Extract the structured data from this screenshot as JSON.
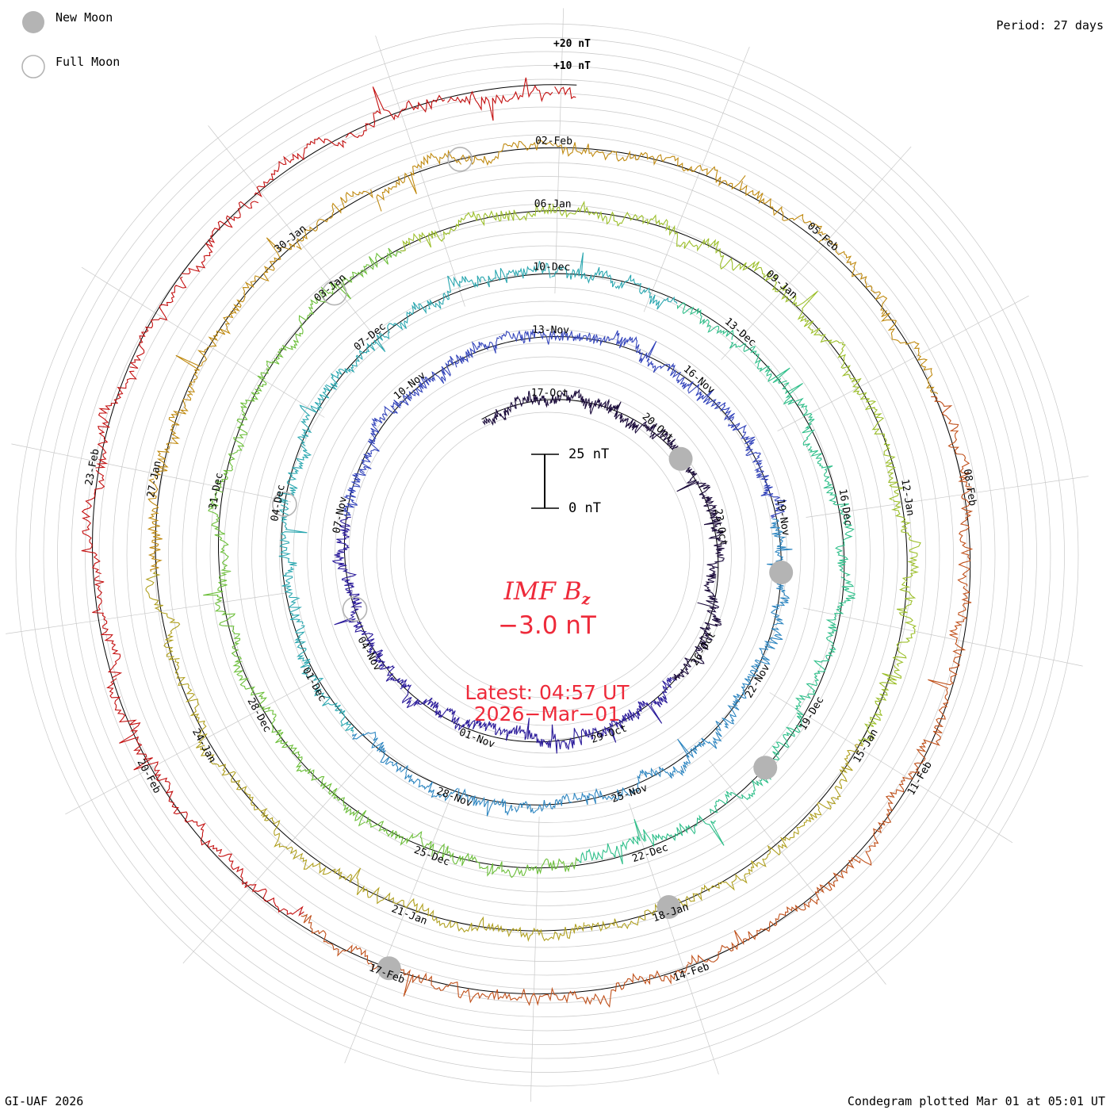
{
  "legend": {
    "new_moon_label": "New Moon",
    "full_moon_label": "Full Moon",
    "new_moon_color": "#b4b4b4",
    "full_moon_color": "#b4b4b4"
  },
  "header": {
    "period_text": "Period: 27 days"
  },
  "ring_labels": {
    "plus20": "+20 nT",
    "plus10": "+10 nT"
  },
  "title": {
    "main": "IMF B",
    "subscript": "z",
    "current_value": "−3.0 nT",
    "color": "#ee2a3a"
  },
  "latest": {
    "line1": "Latest: 04:57 UT",
    "line2": "2026−Mar−01"
  },
  "scale_bar": {
    "top_label": "25 nT",
    "bottom_label": "0 nT"
  },
  "footer": {
    "left": "GI-UAF 2026",
    "right": "Condegram plotted Mar 01 at 05:01 UT"
  },
  "chart_data": {
    "type": "line",
    "subtype": "polar-spiral-condegram",
    "variable": "IMF Bz",
    "unit": "nT",
    "period_days": 27,
    "start_date": "2025-10-15",
    "end_date": "2026-03-01",
    "scale_bar_nT": [
      0,
      25
    ],
    "date_labels": [
      {
        "label": "17-Oct"
      },
      {
        "label": "20-Oct"
      },
      {
        "label": "23-Oct"
      },
      {
        "label": "26-Oct"
      },
      {
        "label": "29-Oct"
      },
      {
        "label": "01-Nov"
      },
      {
        "label": "04-Nov"
      },
      {
        "label": "07-Nov"
      },
      {
        "label": "10-Nov"
      },
      {
        "label": "13-Nov"
      },
      {
        "label": "16-Nov"
      },
      {
        "label": "19-Nov"
      },
      {
        "label": "22-Nov"
      },
      {
        "label": "25-Nov"
      },
      {
        "label": "28-Nov"
      },
      {
        "label": "01-Dec"
      },
      {
        "label": "04-Dec"
      },
      {
        "label": "07-Dec"
      },
      {
        "label": "10-Dec"
      },
      {
        "label": "13-Dec"
      },
      {
        "label": "16-Dec"
      },
      {
        "label": "19-Dec"
      },
      {
        "label": "22-Dec"
      },
      {
        "label": "25-Dec"
      },
      {
        "label": "28-Dec"
      },
      {
        "label": "31-Dec"
      },
      {
        "label": "03-Jan"
      },
      {
        "label": "06-Jan"
      },
      {
        "label": "09-Jan"
      },
      {
        "label": "12-Jan"
      },
      {
        "label": "15-Jan"
      },
      {
        "label": "18-Jan"
      },
      {
        "label": "21-Jan"
      },
      {
        "label": "24-Jan"
      },
      {
        "label": "27-Jan"
      },
      {
        "label": "30-Jan"
      },
      {
        "label": "02-Feb"
      },
      {
        "label": "05-Feb"
      },
      {
        "label": "08-Feb"
      },
      {
        "label": "11-Feb"
      },
      {
        "label": "14-Feb"
      },
      {
        "label": "17-Feb"
      },
      {
        "label": "20-Feb"
      },
      {
        "label": "23-Feb"
      }
    ],
    "new_moons": [
      "2025-10-21",
      "2025-11-20",
      "2025-12-20",
      "2026-01-18",
      "2026-02-17"
    ],
    "full_moons": [
      "2025-11-05",
      "2025-12-04",
      "2026-01-03",
      "2026-02-01"
    ],
    "color_scale": [
      "#1a0a3a",
      "#2a1a9a",
      "#3344bb",
      "#2e86c1",
      "#2aa7b0",
      "#2fbf8a",
      "#6cbf3a",
      "#9cbf2a",
      "#b0a020",
      "#c08a10",
      "#c0501a",
      "#c41010"
    ],
    "grid": true
  }
}
